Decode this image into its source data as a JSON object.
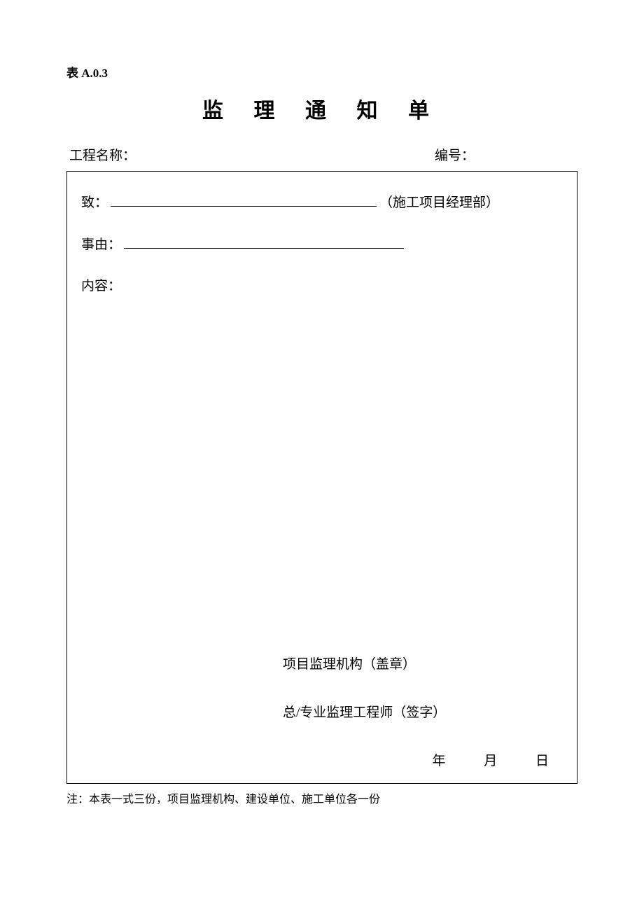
{
  "tableNumber": "表 A.0.3",
  "title": "监 理 通 知 单",
  "header": {
    "projectLabel": "工程名称：",
    "numberLabel": "编号："
  },
  "form": {
    "toLabel": "致：",
    "toSuffix": "（施工项目经理部）",
    "reasonLabel": "事由：",
    "contentLabel": "内容："
  },
  "signature": {
    "org": "项目监理机构（盖章）",
    "engineer": "总/专业监理工程师（签字）",
    "date": {
      "year": "年",
      "month": "月",
      "day": "日"
    }
  },
  "footer": "注：本表一式三份，项目监理机构、建设单位、施工单位各一份"
}
